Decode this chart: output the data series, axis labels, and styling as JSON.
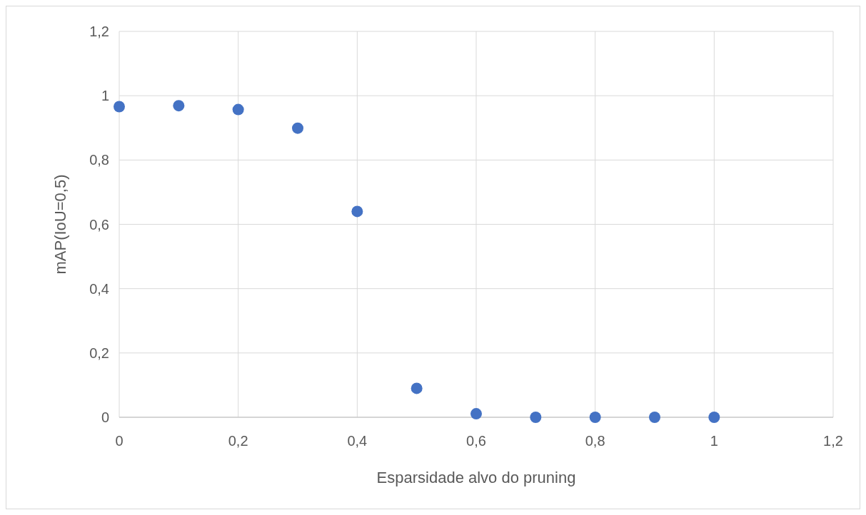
{
  "chart_data": {
    "type": "scatter",
    "xlabel": "Esparsidade alvo do pruning",
    "ylabel": "mAP(IoU=0,5)",
    "x": [
      0,
      0.1,
      0.2,
      0.3,
      0.4,
      0.5,
      0.6,
      0.7,
      0.8,
      0.9,
      1
    ],
    "series": [
      {
        "color": "#4472c4",
        "values": [
          0.966,
          0.969,
          0.957,
          0.899,
          0.64,
          0.09,
          0.011,
          0,
          0,
          0,
          0
        ]
      }
    ],
    "xlim": [
      0,
      1.2
    ],
    "ylim": [
      0,
      1.2
    ],
    "xticks": [
      0,
      {
        "value": 0.2,
        "label": "0,2"
      },
      {
        "value": 0.4,
        "label": "0,4"
      },
      {
        "value": 0.6,
        "label": "0,6"
      },
      {
        "value": 0.8,
        "label": "0,8"
      },
      1,
      {
        "value": 1.2,
        "label": "1,2"
      }
    ],
    "yticks": [
      0,
      {
        "value": 0.2,
        "label": "0,2"
      },
      {
        "value": 0.4,
        "label": "0,4"
      },
      {
        "value": 0.6,
        "label": "0,6"
      },
      {
        "value": 0.8,
        "label": "0,8"
      },
      1,
      {
        "value": 1.2,
        "label": "1,2"
      }
    ],
    "grid": true,
    "marker": "circle"
  }
}
